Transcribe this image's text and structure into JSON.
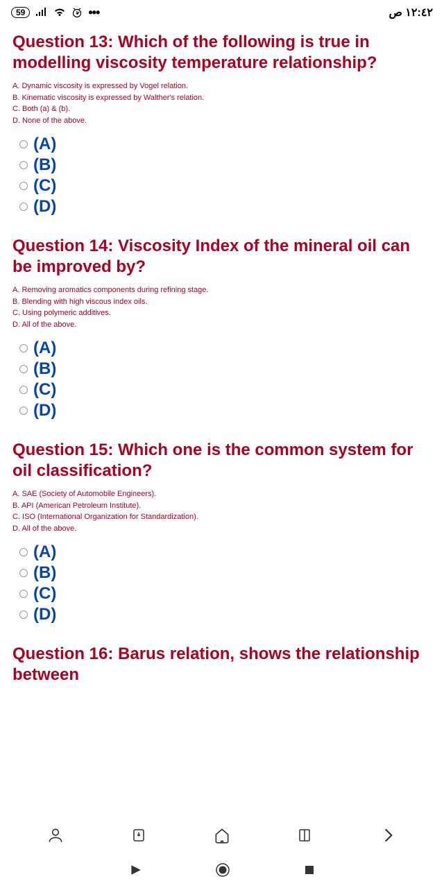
{
  "statusBar": {
    "badge": "59",
    "time": "١٢:٤٢ ص"
  },
  "questions": [
    {
      "title": "Question 13: Which of the following is true in modelling viscosity temperature relationship?",
      "descriptions": [
        "A. Dynamic viscosity is expressed by Vogel relation.",
        "B. Kinematic viscosity is expressed by Walther's relation.",
        "C. Both (a) & (b).",
        "D. None of the above."
      ],
      "options": [
        "(A)",
        "(B)",
        "(C)",
        "(D)"
      ]
    },
    {
      "title": "Question 14: Viscosity Index of the mineral oil can be improved by?",
      "descriptions": [
        "A. Removing aromatics components during refining stage.",
        "B. Blending with high viscous index oils.",
        "C. Using polymeric additives.",
        "D. All of the above."
      ],
      "options": [
        "(A)",
        "(B)",
        "(C)",
        "(D)"
      ]
    },
    {
      "title": "Question 15: Which one is the common system for oil classification?",
      "descriptions": [
        "A. SAE (Society of Automobile Engineers).",
        "B. API (American Petroleum Institute).",
        "C. ISO (International Organization for Standardization).",
        "D. All of the above."
      ],
      "options": [
        "(A)",
        "(B)",
        "(C)",
        "(D)"
      ]
    },
    {
      "title": "Question 16: Barus relation, shows the relationship between",
      "descriptions": [],
      "options": []
    }
  ],
  "colors": {
    "questionRed": "#b00020",
    "optionBlue": "#0645ad",
    "iconDark": "#333333"
  }
}
